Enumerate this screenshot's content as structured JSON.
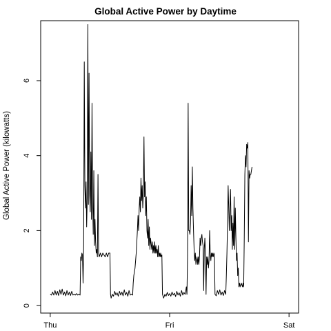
{
  "chart_data": {
    "type": "line",
    "title": "Global Active Power by Daytime",
    "xlabel": "",
    "ylabel": "Global Active Power (kilowatts)",
    "x_ticks": [
      {
        "value": 0,
        "label": "Thu"
      },
      {
        "value": 1,
        "label": "Fri"
      },
      {
        "value": 2,
        "label": "Sat"
      }
    ],
    "y_ticks": [
      0,
      2,
      4,
      6
    ],
    "xlim": [
      -0.08,
      2.08
    ],
    "ylim": [
      -0.2,
      7.6
    ],
    "grid": false,
    "series": [
      {
        "values": [
          [
            0.0,
            0.3
          ],
          [
            0.01,
            0.28
          ],
          [
            0.02,
            0.36
          ],
          [
            0.03,
            0.28
          ],
          [
            0.04,
            0.4
          ],
          [
            0.05,
            0.28
          ],
          [
            0.06,
            0.38
          ],
          [
            0.07,
            0.27
          ],
          [
            0.08,
            0.42
          ],
          [
            0.09,
            0.3
          ],
          [
            0.1,
            0.44
          ],
          [
            0.11,
            0.28
          ],
          [
            0.12,
            0.36
          ],
          [
            0.13,
            0.26
          ],
          [
            0.14,
            0.4
          ],
          [
            0.15,
            0.28
          ],
          [
            0.16,
            0.36
          ],
          [
            0.17,
            0.27
          ],
          [
            0.18,
            0.38
          ],
          [
            0.19,
            0.28
          ],
          [
            0.2,
            0.3
          ],
          [
            0.21,
            0.28
          ],
          [
            0.22,
            0.32
          ],
          [
            0.23,
            0.28
          ],
          [
            0.24,
            0.3
          ],
          [
            0.25,
            0.28
          ],
          [
            0.255,
            1.3
          ],
          [
            0.26,
            1.2
          ],
          [
            0.265,
            1.4
          ],
          [
            0.27,
            1.35
          ],
          [
            0.275,
            0.6
          ],
          [
            0.28,
            1.6
          ],
          [
            0.285,
            6.5
          ],
          [
            0.29,
            3.2
          ],
          [
            0.295,
            2.6
          ],
          [
            0.3,
            3.3
          ],
          [
            0.305,
            2.1
          ],
          [
            0.31,
            2.9
          ],
          [
            0.315,
            7.5
          ],
          [
            0.32,
            2.7
          ],
          [
            0.325,
            6.2
          ],
          [
            0.33,
            3.0
          ],
          [
            0.335,
            2.5
          ],
          [
            0.34,
            4.1
          ],
          [
            0.345,
            2.3
          ],
          [
            0.35,
            5.4
          ],
          [
            0.355,
            2.8
          ],
          [
            0.36,
            1.9
          ],
          [
            0.365,
            3.6
          ],
          [
            0.37,
            1.6
          ],
          [
            0.375,
            2.3
          ],
          [
            0.38,
            1.7
          ],
          [
            0.385,
            1.4
          ],
          [
            0.39,
            1.5
          ],
          [
            0.395,
            1.3
          ],
          [
            0.4,
            3.5
          ],
          [
            0.405,
            1.4
          ],
          [
            0.41,
            1.3
          ],
          [
            0.42,
            1.4
          ],
          [
            0.43,
            1.3
          ],
          [
            0.44,
            1.4
          ],
          [
            0.45,
            1.35
          ],
          [
            0.46,
            1.3
          ],
          [
            0.47,
            1.4
          ],
          [
            0.48,
            1.3
          ],
          [
            0.49,
            1.4
          ],
          [
            0.5,
            1.4
          ],
          [
            0.505,
            0.3
          ],
          [
            0.51,
            0.2
          ],
          [
            0.52,
            0.3
          ],
          [
            0.53,
            0.25
          ],
          [
            0.54,
            0.38
          ],
          [
            0.55,
            0.28
          ],
          [
            0.56,
            0.34
          ],
          [
            0.57,
            0.25
          ],
          [
            0.58,
            0.38
          ],
          [
            0.59,
            0.28
          ],
          [
            0.6,
            0.36
          ],
          [
            0.61,
            0.26
          ],
          [
            0.62,
            0.42
          ],
          [
            0.63,
            0.28
          ],
          [
            0.64,
            0.35
          ],
          [
            0.65,
            0.25
          ],
          [
            0.66,
            0.4
          ],
          [
            0.67,
            0.28
          ],
          [
            0.68,
            0.3
          ],
          [
            0.69,
            0.28
          ],
          [
            0.695,
            0.6
          ],
          [
            0.7,
            0.8
          ],
          [
            0.71,
            1.0
          ],
          [
            0.72,
            1.4
          ],
          [
            0.73,
            2.0
          ],
          [
            0.735,
            2.4
          ],
          [
            0.74,
            2.0
          ],
          [
            0.745,
            2.6
          ],
          [
            0.75,
            2.9
          ],
          [
            0.755,
            2.5
          ],
          [
            0.76,
            3.4
          ],
          [
            0.765,
            2.8
          ],
          [
            0.77,
            3.2
          ],
          [
            0.775,
            2.6
          ],
          [
            0.78,
            3.0
          ],
          [
            0.785,
            4.5
          ],
          [
            0.79,
            2.9
          ],
          [
            0.795,
            3.3
          ],
          [
            0.8,
            2.4
          ],
          [
            0.805,
            2.9
          ],
          [
            0.81,
            2.0
          ],
          [
            0.815,
            1.8
          ],
          [
            0.82,
            2.3
          ],
          [
            0.825,
            1.6
          ],
          [
            0.83,
            2.1
          ],
          [
            0.835,
            1.5
          ],
          [
            0.84,
            1.8
          ],
          [
            0.85,
            1.5
          ],
          [
            0.855,
            1.7
          ],
          [
            0.86,
            1.4
          ],
          [
            0.865,
            1.6
          ],
          [
            0.87,
            1.4
          ],
          [
            0.875,
            1.7
          ],
          [
            0.88,
            1.4
          ],
          [
            0.885,
            1.6
          ],
          [
            0.89,
            1.4
          ],
          [
            0.895,
            1.5
          ],
          [
            0.9,
            1.3
          ],
          [
            0.905,
            1.6
          ],
          [
            0.91,
            1.3
          ],
          [
            0.915,
            1.4
          ],
          [
            0.92,
            1.3
          ],
          [
            0.925,
            1.4
          ],
          [
            0.93,
            1.3
          ],
          [
            0.935,
            1.35
          ],
          [
            0.94,
            0.3
          ],
          [
            0.95,
            0.2
          ],
          [
            0.96,
            0.3
          ],
          [
            0.97,
            0.25
          ],
          [
            0.98,
            0.35
          ],
          [
            0.99,
            0.27
          ],
          [
            1.0,
            0.32
          ],
          [
            1.01,
            0.25
          ],
          [
            1.02,
            0.36
          ],
          [
            1.03,
            0.28
          ],
          [
            1.04,
            0.33
          ],
          [
            1.05,
            0.24
          ],
          [
            1.06,
            0.38
          ],
          [
            1.07,
            0.28
          ],
          [
            1.08,
            0.34
          ],
          [
            1.09,
            0.25
          ],
          [
            1.1,
            0.4
          ],
          [
            1.11,
            0.28
          ],
          [
            1.12,
            0.35
          ],
          [
            1.13,
            0.3
          ],
          [
            1.14,
            0.5
          ],
          [
            1.145,
            0.3
          ],
          [
            1.15,
            1.3
          ],
          [
            1.155,
            5.4
          ],
          [
            1.16,
            2.0
          ],
          [
            1.165,
            2.0
          ],
          [
            1.17,
            1.9
          ],
          [
            1.175,
            2.2
          ],
          [
            1.18,
            3.2
          ],
          [
            1.185,
            2.4
          ],
          [
            1.19,
            3.7
          ],
          [
            1.195,
            2.6
          ],
          [
            1.2,
            2.0
          ],
          [
            1.205,
            1.5
          ],
          [
            1.21,
            1.2
          ],
          [
            1.215,
            1.4
          ],
          [
            1.22,
            1.1
          ],
          [
            1.23,
            1.3
          ],
          [
            1.235,
            1.1
          ],
          [
            1.24,
            1.3
          ],
          [
            1.245,
            1.1
          ],
          [
            1.25,
            1.3
          ],
          [
            1.255,
            1.8
          ],
          [
            1.26,
            1.6
          ],
          [
            1.265,
            1.8
          ],
          [
            1.27,
            1.9
          ],
          [
            1.275,
            1.7
          ],
          [
            1.28,
            1.6
          ],
          [
            1.285,
            0.4
          ],
          [
            1.29,
            1.5
          ],
          [
            1.295,
            1.8
          ],
          [
            1.3,
            1.4
          ],
          [
            1.305,
            0.3
          ],
          [
            1.31,
            1.3
          ],
          [
            1.315,
            1.1
          ],
          [
            1.32,
            1.3
          ],
          [
            1.325,
            1.0
          ],
          [
            1.33,
            1.2
          ],
          [
            1.335,
            2.0
          ],
          [
            1.34,
            1.4
          ],
          [
            1.345,
            1.2
          ],
          [
            1.35,
            1.4
          ],
          [
            1.355,
            1.3
          ],
          [
            1.36,
            1.4
          ],
          [
            1.365,
            1.3
          ],
          [
            1.37,
            1.4
          ],
          [
            1.375,
            1.35
          ],
          [
            1.38,
            0.3
          ],
          [
            1.39,
            0.26
          ],
          [
            1.4,
            0.4
          ],
          [
            1.41,
            0.3
          ],
          [
            1.42,
            0.42
          ],
          [
            1.43,
            0.28
          ],
          [
            1.44,
            0.36
          ],
          [
            1.45,
            0.27
          ],
          [
            1.46,
            0.4
          ],
          [
            1.47,
            0.3
          ],
          [
            1.475,
            0.8
          ],
          [
            1.48,
            1.4
          ],
          [
            1.485,
            2.2
          ],
          [
            1.49,
            3.2
          ],
          [
            1.495,
            2.6
          ],
          [
            1.5,
            2.0
          ],
          [
            1.505,
            2.6
          ],
          [
            1.51,
            3.1
          ],
          [
            1.515,
            2.0
          ],
          [
            1.52,
            2.4
          ],
          [
            1.525,
            1.5
          ],
          [
            1.53,
            2.2
          ],
          [
            1.535,
            1.6
          ],
          [
            1.54,
            2.9
          ],
          [
            1.545,
            1.5
          ],
          [
            1.55,
            2.6
          ],
          [
            1.555,
            1.8
          ],
          [
            1.56,
            1.2
          ],
          [
            1.565,
            1.4
          ],
          [
            1.57,
            0.8
          ],
          [
            1.575,
            1.0
          ],
          [
            1.58,
            0.5
          ],
          [
            1.585,
            0.6
          ],
          [
            1.59,
            0.5
          ],
          [
            1.6,
            0.6
          ],
          [
            1.61,
            0.5
          ],
          [
            1.615,
            0.6
          ],
          [
            1.62,
            0.5
          ],
          [
            1.625,
            1.8
          ],
          [
            1.63,
            3.5
          ],
          [
            1.635,
            4.0
          ],
          [
            1.64,
            3.7
          ],
          [
            1.645,
            4.3
          ],
          [
            1.65,
            4.2
          ],
          [
            1.655,
            4.35
          ],
          [
            1.66,
            1.7
          ],
          [
            1.665,
            3.6
          ],
          [
            1.67,
            3.4
          ],
          [
            1.675,
            3.5
          ],
          [
            1.68,
            3.5
          ],
          [
            1.685,
            3.6
          ],
          [
            1.69,
            3.7
          ]
        ]
      }
    ]
  }
}
